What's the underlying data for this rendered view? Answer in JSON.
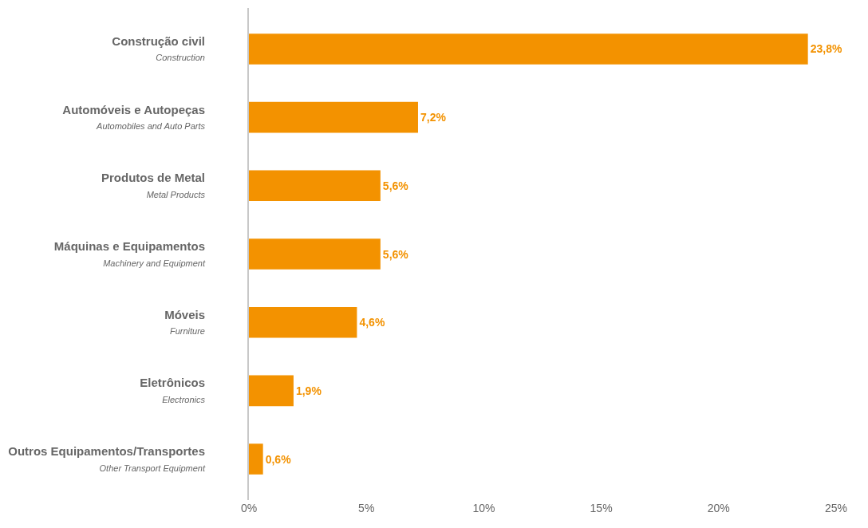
{
  "chart_data": {
    "type": "bar",
    "orientation": "horizontal",
    "categories": [
      "Construção civil\nConstruction",
      "Automóveis e Autopeças\nAutomobiles and Auto Parts",
      "Produtos de Metal\nMetal Products",
      "Máquinas e Equipamentos\nMachinery and Equipment",
      "Móveis\nFurniture",
      "Eletrônicos\nElectronics",
      "Outros Equipamentos/Transportes\nOther Transport Equipment"
    ],
    "values": [
      23.8,
      7.2,
      5.6,
      5.6,
      4.6,
      1.9,
      0.6
    ],
    "value_labels": [
      "23,8%",
      "7,2%",
      "5,6%",
      "5,6%",
      "4,6%",
      "1,9%",
      "0,6%"
    ],
    "color": "#f39200",
    "xlim": [
      0,
      25
    ],
    "xticks": [
      {
        "value": 0,
        "label": "0%"
      },
      {
        "value": 5,
        "label": "5%"
      },
      {
        "value": 10,
        "label": "10%"
      },
      {
        "value": 15,
        "label": "15%"
      },
      {
        "value": 20,
        "label": "20%"
      },
      {
        "value": 25,
        "label": "25%"
      }
    ],
    "tick_labels": "xy"
  }
}
